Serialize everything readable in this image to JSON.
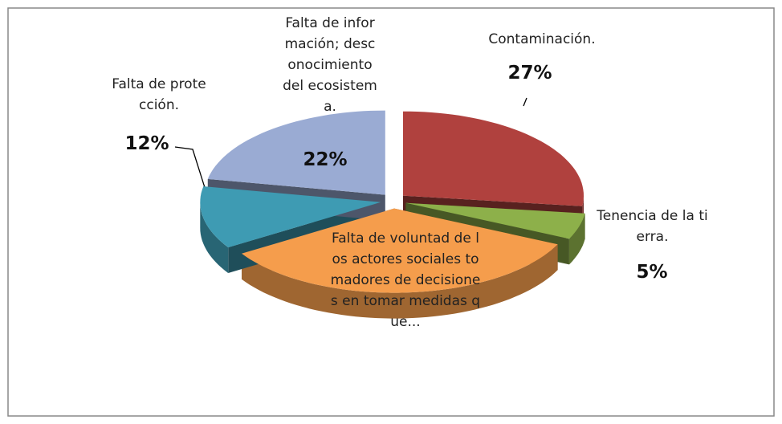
{
  "chart_data": {
    "type": "pie3d",
    "categories": [
      "Contaminación.",
      "Tenencia de la tierra.",
      "Falta de voluntad de los actores sociales tomadores de decisiones en tomar medidas que...",
      "Falta de protección.",
      "Falta de información; desconocimiento del ecosistema."
    ],
    "values": [
      27,
      5,
      34,
      12,
      22
    ],
    "value_labels": [
      "27%",
      "5%",
      null,
      "12%",
      "22%"
    ],
    "colors": [
      "#b0413e",
      "#8db04a",
      "#f59d4c",
      "#3e9bb3",
      "#9aabd3"
    ]
  }
}
